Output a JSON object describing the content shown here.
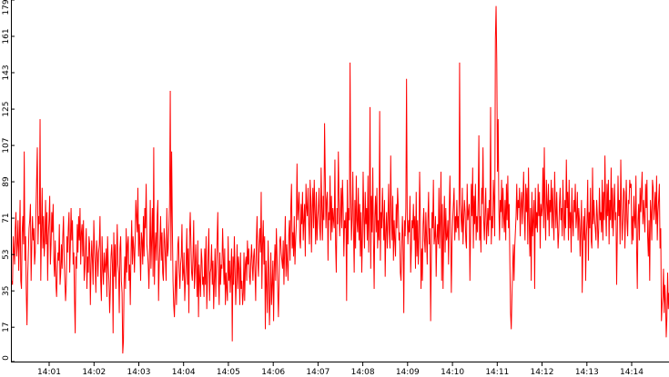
{
  "chart_data": {
    "type": "line",
    "title": "",
    "xlabel": "",
    "ylabel": "",
    "ylim": [
      0,
      179
    ],
    "y_ticks": [
      0,
      17,
      35,
      53,
      71,
      89,
      107,
      125,
      143,
      161,
      179
    ],
    "x_ticks": [
      "14:01",
      "14:02",
      "14:03",
      "14:04",
      "14:05",
      "14:06",
      "14:07",
      "14:08",
      "14:09",
      "14:10",
      "14:11",
      "14:12",
      "14:13",
      "14:14"
    ],
    "x_start": "14:00:10",
    "x_end": "14:14:50",
    "grid": false,
    "legend": "none",
    "series": [
      {
        "color": "#ff0000",
        "values": [
          40,
          38,
          62,
          55,
          48,
          66,
          74,
          52,
          58,
          70,
          45,
          60,
          80,
          40,
          36,
          64,
          72,
          58,
          104,
          50,
          62,
          34,
          18,
          42,
          54,
          66,
          70,
          78,
          40,
          58,
          72,
          60,
          66,
          48,
          54,
          74,
          90,
          106,
          58,
          72,
          68,
          120,
          40,
          64,
          86,
          56,
          72,
          52,
          60,
          80,
          58,
          74,
          40,
          62,
          70,
          82,
          48,
          58,
          74,
          64,
          78,
          50,
          42,
          60,
          38,
          32,
          46,
          54,
          50,
          68,
          38,
          44,
          58,
          46,
          62,
          72,
          50,
          40,
          30,
          38,
          62,
          54,
          66,
          74,
          44,
          58,
          76,
          60,
          70,
          48,
          54,
          30,
          14,
          52,
          46,
          68,
          54,
          72,
          60,
          76,
          48,
          64,
          68,
          52,
          70,
          40,
          46,
          56,
          66,
          36,
          52,
          44,
          62,
          58,
          28,
          48,
          60,
          50,
          38,
          70,
          56,
          48,
          34,
          60,
          54,
          42,
          54,
          58,
          72,
          40,
          30,
          62,
          46,
          38,
          54,
          44,
          48,
          56,
          32,
          62,
          48,
          40,
          24,
          36,
          52,
          58,
          48,
          14,
          64,
          42,
          58,
          36,
          52,
          68,
          48,
          44,
          24,
          56,
          62,
          40,
          34,
          4,
          10,
          40,
          52,
          36,
          66,
          44,
          58,
          62,
          40,
          48,
          28,
          54,
          70,
          48,
          62,
          56,
          44,
          60,
          80,
          72,
          64,
          86,
          52,
          68,
          56,
          40,
          64,
          60,
          48,
          72,
          52,
          76,
          66,
          88,
          58,
          54,
          48,
          36,
          54,
          80,
          46,
          60,
          76,
          42,
          106,
          38,
          56,
          64,
          50,
          72,
          80,
          30,
          48,
          58,
          72,
          50,
          64,
          44,
          40,
          66,
          60,
          50,
          40,
          76,
          52,
          56,
          66,
          78,
          134,
          50,
          104,
          68,
          40,
          28,
          22,
          36,
          50,
          28,
          44,
          58,
          62,
          44,
          36,
          48,
          52,
          68,
          40,
          44,
          54,
          30,
          40,
          48,
          66,
          38,
          56,
          24,
          62,
          74,
          58,
          44,
          40,
          52,
          70,
          36,
          44,
          58,
          46,
          32,
          60,
          22,
          48,
          40,
          32,
          56,
          50,
          38,
          42,
          32,
          56,
          38,
          62,
          26,
          40,
          54,
          66,
          30,
          44,
          46,
          58,
          38,
          50,
          26,
          40,
          56,
          32,
          48,
          60,
          74,
          40,
          28,
          54,
          38,
          48,
          46,
          66,
          52,
          38,
          56,
          28,
          44,
          36,
          30,
          62,
          40,
          50,
          34,
          44,
          56,
          10,
          52,
          38,
          62,
          46,
          28,
          40,
          58,
          36,
          52,
          46,
          28,
          54,
          36,
          40,
          28,
          34,
          54,
          30,
          48,
          52,
          40,
          60,
          48,
          56,
          42,
          38,
          50,
          58,
          48,
          40,
          52,
          56,
          44,
          30,
          60,
          72,
          50,
          42,
          58,
          66,
          54,
          84,
          36,
          58,
          70,
          48,
          62,
          16,
          50,
          38,
          24,
          60,
          46,
          18,
          32,
          54,
          28,
          38,
          50,
          20,
          46,
          58,
          40,
          66,
          52,
          36,
          22,
          40,
          60,
          62,
          54,
          50,
          46,
          60,
          38,
          56,
          72,
          42,
          58,
          48,
          40,
          62,
          70,
          50,
          76,
          88,
          56,
          64,
          52,
          72,
          48,
          60,
          68,
          98,
          70,
          76,
          84,
          60,
          56,
          78,
          68,
          84,
          60,
          70,
          78,
          52,
          88,
          76,
          72,
          86,
          68,
          58,
          90,
          80,
          54,
          76,
          86,
          66,
          90,
          74,
          58,
          84,
          60,
          70,
          76,
          86,
          66,
          60,
          96,
          76,
          60,
          82,
          70,
          118,
          92,
          66,
          80,
          84,
          50,
          74,
          70,
          92,
          60,
          82,
          64,
          76,
          70,
          66,
          100,
          58,
          44,
          76,
          68,
          104,
          80,
          62,
          72,
          86,
          66,
          90,
          76,
          52,
          70,
          66,
          74,
          30,
          90,
          58,
          76,
          70,
          148,
          84,
          60,
          72,
          94,
          66,
          44,
          80,
          56,
          92,
          70,
          64,
          86,
          60,
          78,
          52,
          74,
          44,
          62,
          94,
          72,
          56,
          84,
          68,
          76,
          60,
          92,
          54,
          74,
          126,
          46,
          82,
          64,
          96,
          60,
          36,
          72,
          82,
          64,
          86,
          56,
          70,
          60,
          124,
          50,
          74,
          66,
          86,
          72,
          60,
          80,
          42,
          64,
          74,
          56,
          70,
          88,
          64,
          56,
          102,
          72,
          60,
          82,
          50,
          70,
          60,
          52,
          78,
          66,
          86,
          76,
          60,
          64,
          44,
          40,
          56,
          72,
          60,
          24,
          70,
          62,
          76,
          140,
          72,
          58,
          70,
          64,
          82,
          44,
          56,
          70,
          66,
          78,
          60,
          72,
          46,
          84,
          52,
          70,
          48,
          62,
          94,
          72,
          36,
          56,
          40,
          68,
          76,
          60,
          54,
          74,
          62,
          48,
          70,
          84,
          58,
          66,
          20,
          52,
          74,
          66,
          90,
          58,
          62,
          72,
          42,
          60,
          68,
          58,
          86,
          56,
          70,
          94,
          40,
          78,
          36,
          64,
          82,
          54,
          76,
          60,
          62,
          70,
          48,
          76,
          92,
          66,
          34,
          58,
          70,
          78,
          86,
          60,
          72,
          64,
          80,
          66,
          72,
          60,
          148,
          78,
          72,
          64,
          86,
          58,
          70,
          80,
          74,
          60,
          56,
          88,
          70,
          74,
          78,
          40,
          66,
          88,
          72,
          96,
          56,
          82,
          68,
          88,
          60,
          72,
          64,
          80,
          112,
          60,
          72,
          54,
          86,
          78,
          106,
          70,
          60,
          74,
          86,
          58,
          66,
          76,
          62,
          80,
          70,
          126,
          58,
          72,
          66,
          90,
          80,
          62,
          160,
          176,
          148,
          94,
          120,
          76,
          60,
          80,
          74,
          90,
          66,
          86,
          72,
          64,
          80,
          60,
          88,
          70,
          92,
          66,
          78,
          48,
          24,
          16,
          32,
          46,
          58,
          40,
          56,
          64,
          72,
          88,
          70,
          80,
          76,
          86,
          62,
          78,
          84,
          68,
          80,
          94,
          72,
          60,
          88,
          74,
          86,
          58,
          96,
          70,
          52,
          76,
          40,
          84,
          62,
          70,
          80,
          36,
          86,
          66,
          74,
          64,
          88,
          72,
          84,
          56,
          78,
          72,
          76,
          96,
          66,
          106,
          74,
          60,
          90,
          78,
          70,
          88,
          62,
          80,
          74,
          90,
          66,
          86,
          70,
          60,
          94,
          76,
          66,
          84,
          70,
          56,
          64,
          78,
          86,
          70,
          76,
          62,
          90,
          74,
          60,
          80,
          66,
          100,
          76,
          84,
          60,
          90,
          66,
          74,
          54,
          86,
          70,
          62,
          80,
          74,
          88,
          66,
          72,
          84,
          60,
          76,
          70,
          52,
          66,
          80,
          34,
          58,
          72,
          60,
          76,
          40,
          62,
          70,
          90,
          50,
          74,
          66,
          86,
          60,
          56,
          96,
          68,
          80,
          70,
          66,
          60,
          80,
          72,
          56,
          66,
          86,
          70,
          74,
          64,
          90,
          60,
          84,
          70,
          102,
          76,
          62,
          88,
          72,
          90,
          58,
          80,
          70,
          96,
          66,
          86,
          62,
          76,
          88,
          70,
          74,
          38,
          64,
          92,
          72,
          80,
          58,
          100,
          76,
          60,
          70,
          86,
          84,
          56,
          74,
          90,
          70,
          62,
          80,
          78,
          90,
          86,
          88,
          58,
          72,
          60,
          82,
          70,
          66,
          92,
          56,
          36,
          70,
          78,
          60,
          86,
          74,
          84,
          94,
          68,
          80,
          72,
          64,
          88,
          76,
          90,
          62,
          52,
          70,
          40,
          80,
          74,
          60,
          90,
          86,
          70,
          76,
          84,
          68,
          92,
          60,
          74,
          80,
          88,
          56,
          66,
          20,
          28,
          32,
          46,
          24,
          38,
          30,
          12,
          22,
          44,
          26,
          34
        ]
      }
    ]
  }
}
